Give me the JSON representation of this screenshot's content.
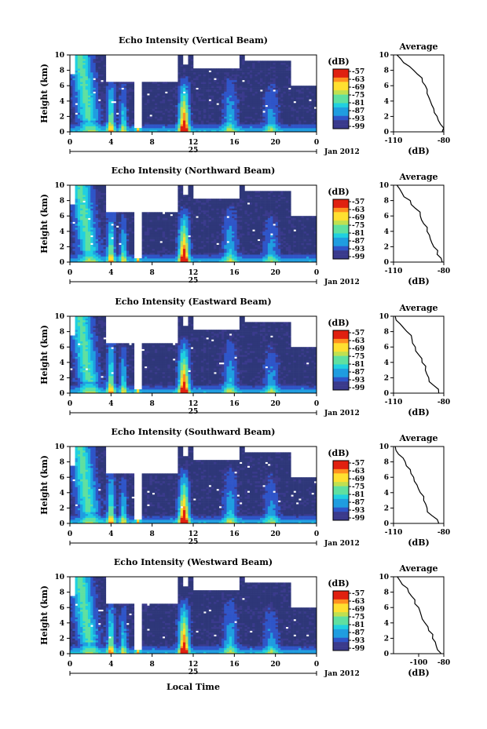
{
  "figure": {
    "colorbar_unit": "(dB)",
    "colorbar_ticks": [
      "-57",
      "-63",
      "-69",
      "-75",
      "-81",
      "-87",
      "-93",
      "-99"
    ],
    "x_ticks": [
      "0",
      "4",
      "8",
      "12",
      "16",
      "20",
      "0"
    ],
    "date_day": "25",
    "date_month": "Jan 2012",
    "x_label": "Local Time",
    "y_label": "Height (km)",
    "y_ticks": [
      "0",
      "2",
      "4",
      "6",
      "8",
      "10"
    ],
    "avg_title": "Average",
    "avg_unit": "(dB)",
    "colors": {
      "background": "#ffffff",
      "no_echo": "#2e3779",
      "colormap": [
        "#3a3a8c",
        "#2f55c8",
        "#1f9de0",
        "#20d0e0",
        "#5fe0a0",
        "#c0e050",
        "#ffe030",
        "#ff9020",
        "#e02010"
      ]
    }
  },
  "chart_data": [
    {
      "type": "heatmap",
      "title": "Echo Intensity (Vertical Beam)",
      "xlim": [
        0,
        24
      ],
      "ylim": [
        0,
        10
      ],
      "color_range": [
        -99,
        -57
      ],
      "average_profile": {
        "type": "line",
        "xlim": [
          -110,
          -80
        ],
        "x_ticks": [
          "-110",
          "-80"
        ],
        "ylim": [
          0,
          10
        ],
        "x": [
          -108,
          -104,
          -98,
          -93,
          -91,
          -90,
          -88,
          -86,
          -84,
          -82,
          -81
        ],
        "y": [
          10,
          9,
          8,
          7,
          6,
          5,
          4,
          3,
          2,
          1,
          0
        ]
      }
    },
    {
      "type": "heatmap",
      "title": "Echo Intensity (Northward Beam)",
      "xlim": [
        0,
        24
      ],
      "ylim": [
        0,
        10
      ],
      "color_range": [
        -99,
        -57
      ],
      "average_profile": {
        "type": "line",
        "xlim": [
          -110,
          -80
        ],
        "x_ticks": [
          "-110",
          "-80"
        ],
        "ylim": [
          0,
          10
        ],
        "x": [
          -108,
          -105,
          -100,
          -97,
          -94,
          -92,
          -90,
          -88,
          -86,
          -84,
          -81
        ],
        "y": [
          10,
          9,
          8,
          7,
          6,
          5,
          4,
          3,
          2,
          1,
          0
        ]
      }
    },
    {
      "type": "heatmap",
      "title": "Echo Intensity (Eastward Beam)",
      "xlim": [
        0,
        24
      ],
      "ylim": [
        0,
        10
      ],
      "color_range": [
        -99,
        -57
      ],
      "average_profile": {
        "type": "line",
        "xlim": [
          -110,
          -80
        ],
        "x_ticks": [
          "-110",
          "-80"
        ],
        "ylim": [
          0,
          10
        ],
        "x": [
          -109,
          -106,
          -102,
          -99,
          -97,
          -95,
          -93,
          -91,
          -89,
          -86,
          -83
        ],
        "y": [
          10,
          9,
          8,
          7,
          6,
          5,
          4,
          3,
          2,
          1,
          0
        ]
      }
    },
    {
      "type": "heatmap",
      "title": "Echo Intensity (Southward Beam)",
      "xlim": [
        0,
        24
      ],
      "ylim": [
        0,
        10
      ],
      "color_range": [
        -99,
        -57
      ],
      "average_profile": {
        "type": "line",
        "xlim": [
          -110,
          -80
        ],
        "x_ticks": [
          "-110",
          "-80"
        ],
        "ylim": [
          0,
          10
        ],
        "x": [
          -109,
          -107,
          -103,
          -100,
          -98,
          -96,
          -94,
          -92,
          -90,
          -87,
          -83
        ],
        "y": [
          10,
          9,
          8,
          7,
          6,
          5,
          4,
          3,
          2,
          1,
          0
        ]
      }
    },
    {
      "type": "heatmap",
      "title": "Echo Intensity (Westward Beam)",
      "xlim": [
        0,
        24
      ],
      "ylim": [
        0,
        10
      ],
      "color_range": [
        -99,
        -57
      ],
      "average_profile": {
        "type": "line",
        "xlim": [
          -120,
          -80
        ],
        "x_ticks": [
          "-100",
          "-80"
        ],
        "ylim": [
          0,
          10
        ],
        "x": [
          -117,
          -113,
          -108,
          -103,
          -100,
          -98,
          -95,
          -92,
          -89,
          -86,
          -82
        ],
        "y": [
          10,
          9,
          8,
          7,
          6,
          5,
          4,
          3,
          2,
          1,
          0
        ]
      }
    }
  ]
}
